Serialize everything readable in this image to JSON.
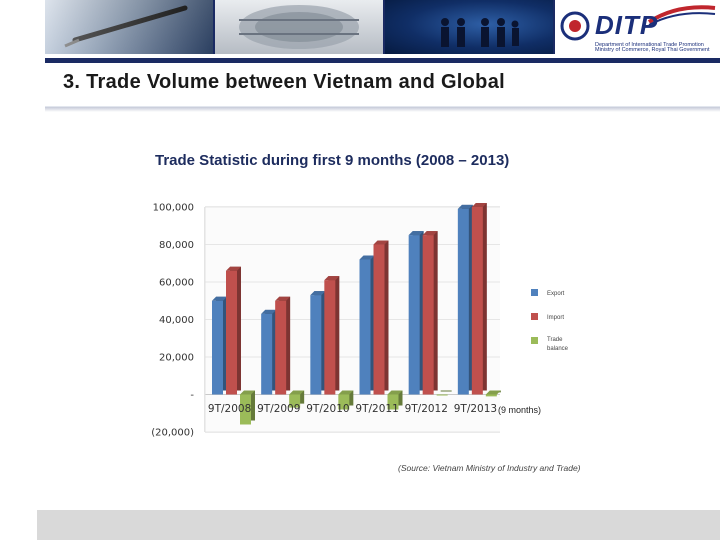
{
  "header": {
    "logo_text": "DITP",
    "logo_sub1": "Department of International Trade Promotion",
    "logo_sub2": "Ministry of Commerce, Royal Thai Government",
    "colors": {
      "banner": "#1a2a63",
      "logo": "#1b2f7a",
      "accent": "#c0262d"
    }
  },
  "slide": {
    "title": "3. Trade Volume between Vietnam and Global",
    "source": "(Source: Vietnam Ministry of Industry and Trade)"
  },
  "chart_data": {
    "type": "bar",
    "title": "Trade Statistic during first 9 months (2008 – 2013)",
    "categories": [
      "9T/2008",
      "9T/2009",
      "9T/2010",
      "9T/2011",
      "9T/2012",
      "9T/2013"
    ],
    "series": [
      {
        "name": "Export",
        "color": "#4f81bd",
        "values": [
          50000,
          43000,
          53000,
          72000,
          85000,
          99000
        ]
      },
      {
        "name": "Import",
        "color": "#c0504d",
        "values": [
          66000,
          50000,
          61000,
          80000,
          85000,
          100000
        ]
      },
      {
        "name": "Trade balance",
        "color": "#9bbb59",
        "values": [
          -16000,
          -7000,
          -8000,
          -8000,
          0,
          -1000
        ]
      }
    ],
    "ylim": [
      -20000,
      100000
    ],
    "yticks": [
      {
        "value": 100000,
        "label": "100,000"
      },
      {
        "value": 80000,
        "label": "80,000"
      },
      {
        "value": 60000,
        "label": "60,000"
      },
      {
        "value": 40000,
        "label": "40,000"
      },
      {
        "value": 20000,
        "label": "20,000"
      },
      {
        "value": 0,
        "label": "-"
      },
      {
        "value": -20000,
        "label": "(20,000)"
      }
    ],
    "note": "(9 months)",
    "legend": {
      "placement": "right"
    },
    "grid": true
  }
}
